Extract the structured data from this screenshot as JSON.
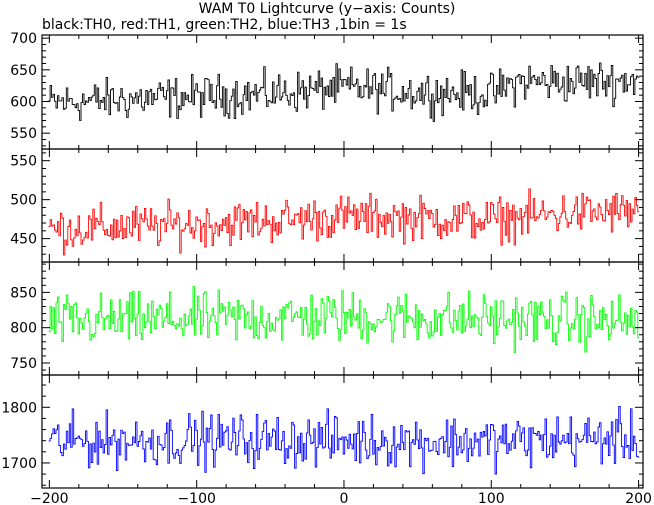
{
  "chart_data": {
    "type": "line",
    "title": "WAM T0 Lightcurve (y−axis: Counts)",
    "subtitle": "black:TH0, red:TH1, green:TH2, blue:TH3 ,1bin = 1s",
    "xlim": [
      -205,
      203
    ],
    "x_ticks": [
      -200,
      -100,
      0,
      100,
      200
    ],
    "x_tick_labels": [
      "−200",
      "−100",
      "0",
      "100",
      "200"
    ],
    "grid": false,
    "panels": [
      {
        "name": "TH0",
        "color": "#000000",
        "ylim": [
          525,
          705
        ],
        "y_ticks": [
          550,
          600,
          650,
          700
        ],
        "mean_profile": [
          [
            -200,
            598
          ],
          [
            -150,
            603
          ],
          [
            -100,
            608
          ],
          [
            -50,
            612
          ],
          [
            0,
            622
          ],
          [
            50,
            615
          ],
          [
            100,
            612
          ],
          [
            120,
            632
          ],
          [
            150,
            630
          ],
          [
            200,
            635
          ]
        ],
        "noise_amplitude": 28
      },
      {
        "name": "TH1",
        "color": "#ff0000",
        "ylim": [
          420,
          565
        ],
        "y_ticks": [
          450,
          500,
          550
        ],
        "mean_profile": [
          [
            -200,
            462
          ],
          [
            -100,
            468
          ],
          [
            0,
            478
          ],
          [
            100,
            474
          ],
          [
            150,
            482
          ],
          [
            200,
            485
          ]
        ],
        "noise_amplitude": 24
      },
      {
        "name": "TH2",
        "color": "#00ff00",
        "ylim": [
          733,
          893
        ],
        "y_ticks": [
          750,
          800,
          850
        ],
        "mean_profile": [
          [
            -200,
            808
          ],
          [
            -100,
            812
          ],
          [
            0,
            815
          ],
          [
            100,
            812
          ],
          [
            200,
            808
          ]
        ],
        "noise_amplitude": 32
      },
      {
        "name": "TH3",
        "color": "#0000ff",
        "ylim": [
          1655,
          1858
        ],
        "y_ticks": [
          1700,
          1800
        ],
        "mean_profile": [
          [
            -200,
            1738
          ],
          [
            -100,
            1742
          ],
          [
            0,
            1740
          ],
          [
            100,
            1738
          ],
          [
            200,
            1745
          ]
        ],
        "noise_amplitude": 40
      }
    ]
  }
}
